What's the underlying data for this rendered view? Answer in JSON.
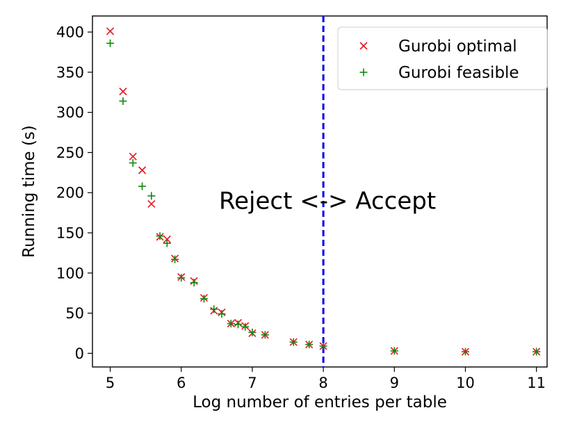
{
  "chart_data": {
    "type": "scatter",
    "xlabel": "Log number of entries per table",
    "ylabel": "Running time (s)",
    "xlim": [
      4.75,
      11.15
    ],
    "ylim": [
      -17,
      420
    ],
    "xticks": [
      5,
      6,
      7,
      8,
      9,
      10,
      11
    ],
    "yticks": [
      0,
      50,
      100,
      150,
      200,
      250,
      300,
      350,
      400
    ],
    "grid": false,
    "legend_position": "top-right",
    "annotation": "Reject <-> Accept",
    "threshold_x": 8,
    "threshold_color": "#0000ee",
    "series": [
      {
        "name": "Gurobi optimal",
        "marker": "x",
        "color": "#e8141e",
        "x": [
          5.0,
          5.18,
          5.32,
          5.45,
          5.58,
          5.7,
          5.8,
          5.91,
          6.0,
          6.18,
          6.32,
          6.46,
          6.57,
          6.7,
          6.8,
          6.9,
          7.0,
          7.18,
          7.58,
          7.8,
          8.0,
          9.0,
          10.0,
          11.0
        ],
        "y": [
          401,
          326,
          245,
          228,
          186,
          145,
          142,
          118,
          95,
          90,
          69,
          53,
          51,
          37,
          38,
          34,
          25,
          23,
          14,
          11,
          9,
          3,
          2,
          2
        ]
      },
      {
        "name": "Gurobi feasible",
        "marker": "+",
        "color": "#0a8a0a",
        "x": [
          5.0,
          5.18,
          5.32,
          5.45,
          5.58,
          5.7,
          5.8,
          5.91,
          6.0,
          6.18,
          6.32,
          6.46,
          6.57,
          6.7,
          6.8,
          6.9,
          7.0,
          7.18,
          7.58,
          7.8,
          8.0,
          9.0,
          10.0,
          11.0
        ],
        "y": [
          386,
          314,
          237,
          208,
          196,
          146,
          137,
          117,
          94,
          88,
          68,
          55,
          49,
          37,
          36,
          33,
          26,
          23,
          14,
          11,
          9,
          3,
          2,
          2
        ]
      }
    ]
  }
}
